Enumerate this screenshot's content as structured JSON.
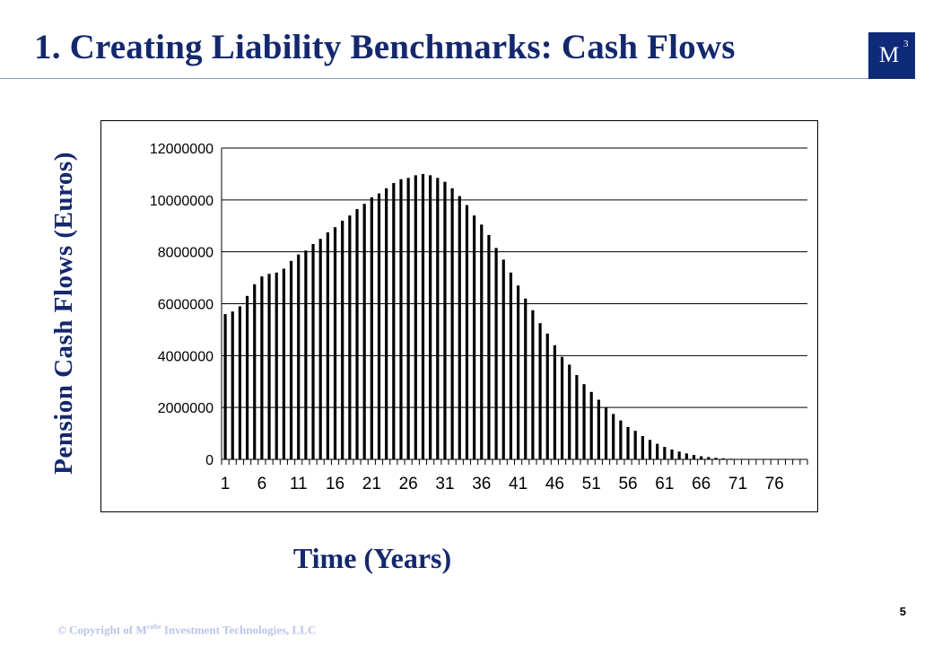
{
  "slide": {
    "title": "1. Creating Liability Benchmarks: Cash Flows",
    "logo": {
      "letter": "M",
      "superscript": "3"
    },
    "copyright": {
      "prefix": "© Copyright of M",
      "sup": "cube",
      "suffix": " Investment Technologies, LLC"
    },
    "page_number": "5"
  },
  "colors": {
    "title": "#14286e",
    "logo_bg": "#0f2a78",
    "bars": "#000000",
    "copyright": "#b8c4ea"
  },
  "chart_data": {
    "type": "bar",
    "title": "",
    "xlabel": "Time (Years)",
    "ylabel": "Pension Cash Flows (Euros)",
    "ylim": [
      0,
      12000000
    ],
    "yticks": [
      "0",
      "2000000",
      "4000000",
      "6000000",
      "8000000",
      "10000000",
      "12000000"
    ],
    "xtick_labels": [
      "1",
      "6",
      "11",
      "16",
      "21",
      "26",
      "31",
      "36",
      "41",
      "46",
      "51",
      "56",
      "61",
      "66",
      "71",
      "76"
    ],
    "grid": true,
    "legend": "none",
    "categories": [
      "1",
      "2",
      "3",
      "4",
      "5",
      "6",
      "7",
      "8",
      "9",
      "10",
      "11",
      "12",
      "13",
      "14",
      "15",
      "16",
      "17",
      "18",
      "19",
      "20",
      "21",
      "22",
      "23",
      "24",
      "25",
      "26",
      "27",
      "28",
      "29",
      "30",
      "31",
      "32",
      "33",
      "34",
      "35",
      "36",
      "37",
      "38",
      "39",
      "40",
      "41",
      "42",
      "43",
      "44",
      "45",
      "46",
      "47",
      "48",
      "49",
      "50",
      "51",
      "52",
      "53",
      "54",
      "55",
      "56",
      "57",
      "58",
      "59",
      "60",
      "61",
      "62",
      "63",
      "64",
      "65",
      "66",
      "67",
      "68",
      "69",
      "70",
      "71",
      "72",
      "73",
      "74",
      "75",
      "76",
      "77",
      "78",
      "79",
      "80"
    ],
    "values": [
      5600000,
      5700000,
      5900000,
      6300000,
      6750000,
      7050000,
      7150000,
      7200000,
      7350000,
      7650000,
      7900000,
      8050000,
      8300000,
      8500000,
      8750000,
      8950000,
      9200000,
      9400000,
      9650000,
      9850000,
      10100000,
      10250000,
      10450000,
      10650000,
      10800000,
      10850000,
      10950000,
      11000000,
      10950000,
      10850000,
      10700000,
      10450000,
      10150000,
      9800000,
      9400000,
      9050000,
      8650000,
      8150000,
      7700000,
      7200000,
      6700000,
      6200000,
      5750000,
      5250000,
      4850000,
      4400000,
      3950000,
      3650000,
      3250000,
      2900000,
      2600000,
      2300000,
      2000000,
      1750000,
      1500000,
      1250000,
      1100000,
      900000,
      750000,
      600000,
      480000,
      380000,
      300000,
      230000,
      170000,
      120000,
      90000,
      60000,
      40000,
      25000,
      15000,
      10000,
      5000,
      3000,
      2000,
      1000,
      0,
      0,
      0,
      0
    ]
  }
}
